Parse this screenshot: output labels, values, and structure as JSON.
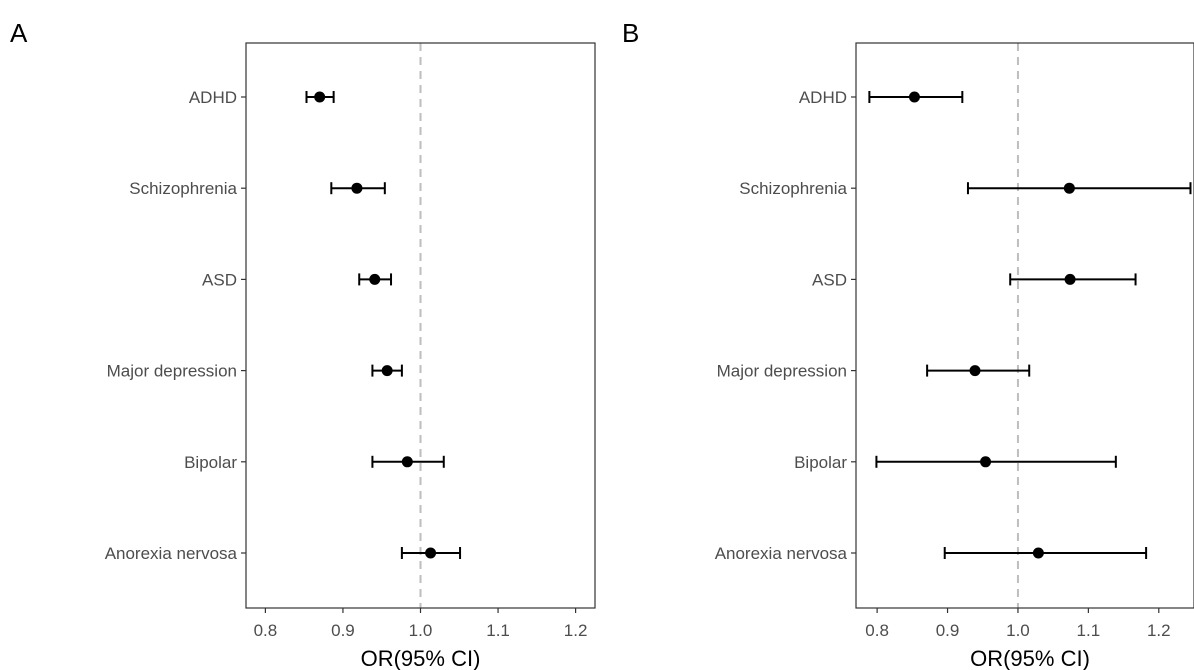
{
  "chart_data": [
    {
      "type": "forest",
      "panel_tag": "A",
      "xlabel": "OR(95% CI)",
      "xlim": [
        0.775,
        1.225
      ],
      "xticks": [
        0.8,
        0.9,
        1.0,
        1.1,
        1.2
      ],
      "xtick_labels": [
        "0.8",
        "0.9",
        "1.0",
        "1.1",
        "1.2"
      ],
      "reference_line": 1.0,
      "grid": false,
      "categories": [
        "ADHD",
        "Schizophrenia",
        "ASD",
        "Major depression",
        "Bipolar",
        "Anorexia nervosa"
      ],
      "estimates": [
        0.87,
        0.918,
        0.941,
        0.957,
        0.983,
        1.013
      ],
      "lower": [
        0.853,
        0.885,
        0.921,
        0.938,
        0.938,
        0.976
      ],
      "upper": [
        0.888,
        0.954,
        0.962,
        0.976,
        1.03,
        1.051
      ]
    },
    {
      "type": "forest",
      "panel_tag": "B",
      "xlabel": "OR(95% CI)",
      "xlim": [
        0.77,
        1.25
      ],
      "xticks": [
        0.8,
        0.9,
        1.0,
        1.1,
        1.2
      ],
      "xtick_labels": [
        "0.8",
        "0.9",
        "1.0",
        "1.1",
        "1.2"
      ],
      "reference_line": 1.0,
      "grid": false,
      "categories": [
        "ADHD",
        "Schizophrenia",
        "ASD",
        "Major depression",
        "Bipolar",
        "Anorexia nervosa"
      ],
      "estimates": [
        0.853,
        1.073,
        1.074,
        0.939,
        0.954,
        1.029
      ],
      "lower": [
        0.789,
        0.929,
        0.989,
        0.871,
        0.799,
        0.896
      ],
      "upper": [
        0.921,
        1.245,
        1.167,
        1.016,
        1.139,
        1.182
      ]
    }
  ]
}
